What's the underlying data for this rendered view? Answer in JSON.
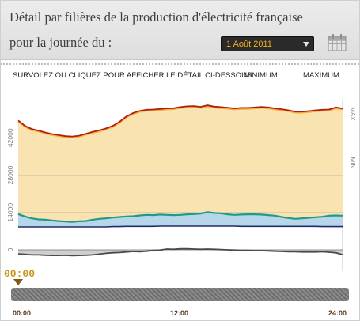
{
  "header": {
    "title_line1": "Détail par filières de la production d'électricité française",
    "title_line2": "pour la journée du :",
    "date_value": "1 Août 2011"
  },
  "instructions": {
    "hint": "SURVOLEZ OU CLIQUEZ POUR AFFICHER LE DÉTAIL CI-DESSOUS.",
    "minimum": "MINIMUM",
    "maximum": "MAXIMUM"
  },
  "timeline": {
    "cursor_time": "00:00",
    "labels": [
      "00:00",
      "12:00",
      "24:00"
    ]
  },
  "colors": {
    "top_line": "#b01e12",
    "top_fill": "#f9e3b1",
    "top_fill_edge": "#f4b13c",
    "teal_line": "#1f9a8a",
    "blue_fill": "#b8d6ea",
    "navy_line": "#1f2b6b",
    "gray_fill": "#cfcfcf",
    "gray_line": "#4a4a4a",
    "date_text": "#f2b01e"
  },
  "chart_data": {
    "type": "area",
    "ylabels": [
      "0",
      "14000",
      "28000",
      "42000"
    ],
    "side_labels": [
      "MAX.",
      "MIN."
    ],
    "ylim": [
      -8000,
      56000
    ],
    "x_range": [
      0,
      24
    ],
    "grid": true,
    "x": [
      0,
      0.5,
      1,
      1.5,
      2,
      2.5,
      3,
      3.5,
      4,
      4.5,
      5,
      5.5,
      6,
      6.5,
      7,
      7.5,
      8,
      8.5,
      9,
      9.5,
      10,
      10.5,
      11,
      11.5,
      12,
      12.5,
      13,
      13.5,
      14,
      14.5,
      15,
      15.5,
      16,
      16.5,
      17,
      17.5,
      18,
      18.5,
      19,
      19.5,
      20,
      20.5,
      21,
      21.5,
      22,
      22.5,
      23,
      23.5,
      24
    ],
    "series": [
      {
        "values": [
          48500,
          46500,
          45300,
          44700,
          44000,
          43400,
          43000,
          42600,
          42500,
          42800,
          43500,
          44200,
          44800,
          45500,
          46500,
          48000,
          50000,
          51300,
          52100,
          52500,
          52600,
          52800,
          53000,
          53100,
          53500,
          53800,
          53900,
          53600,
          54200,
          53700,
          53500,
          53300,
          53000,
          53200,
          53200,
          53400,
          53600,
          53400,
          53000,
          52700,
          52300,
          51800,
          51800,
          52000,
          52300,
          52500,
          52600,
          53400,
          53000
        ]
      },
      {
        "values": [
          13400,
          12500,
          11800,
          11400,
          11300,
          11000,
          10800,
          10600,
          10500,
          10700,
          10800,
          11300,
          11600,
          11800,
          12100,
          12300,
          12500,
          12600,
          12900,
          13100,
          13000,
          13200,
          13100,
          13000,
          13100,
          13300,
          13400,
          13600,
          14100,
          13800,
          13700,
          13300,
          13100,
          13200,
          13300,
          13300,
          13200,
          13000,
          12800,
          12300,
          11900,
          11600,
          11800,
          12000,
          12200,
          12400,
          12800,
          12900,
          12800
        ]
      },
      {
        "values": [
          8600,
          8600,
          8600,
          8600,
          8600,
          8600,
          8600,
          8600,
          8600,
          8600,
          8600,
          8600,
          8600,
          8600,
          8700,
          8700,
          8800,
          8800,
          8800,
          8800,
          8800,
          8900,
          8900,
          8900,
          8900,
          8900,
          8900,
          8900,
          8900,
          8900,
          8900,
          8900,
          8900,
          8800,
          8800,
          8800,
          8800,
          8800,
          8800,
          8800,
          8800,
          8800,
          8800,
          8800,
          8800,
          8700,
          8700,
          8700,
          8700
        ]
      },
      {
        "values": [
          -1500,
          -1700,
          -1900,
          -1900,
          -2000,
          -2100,
          -2100,
          -2000,
          -2200,
          -2100,
          -2000,
          -1900,
          -1600,
          -1300,
          -1100,
          -1000,
          -800,
          -600,
          -700,
          -500,
          -200,
          -100,
          300,
          200,
          400,
          400,
          300,
          200,
          300,
          200,
          100,
          0,
          -100,
          -200,
          -200,
          -300,
          -300,
          -400,
          -500,
          -600,
          -700,
          -700,
          -800,
          -800,
          -800,
          -700,
          -900,
          -1100,
          -1800
        ]
      }
    ]
  }
}
